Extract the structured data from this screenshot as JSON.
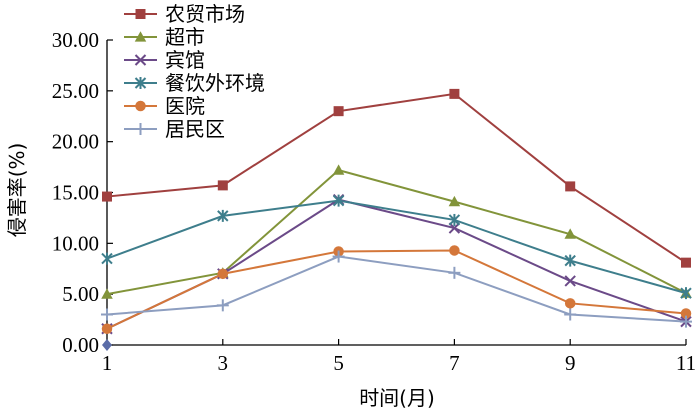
{
  "chart_data": {
    "type": "line",
    "xlabel": "时间(月)",
    "ylabel": "侵害率(%)",
    "x": [
      1,
      3,
      5,
      7,
      9,
      11
    ],
    "x_ticks": [
      "1",
      "3",
      "5",
      "7",
      "9",
      "11"
    ],
    "y_ticks": [
      "0.00",
      "5.00",
      "10.00",
      "15.00",
      "20.00",
      "25.00",
      "30.00"
    ],
    "xlim": [
      1,
      11
    ],
    "ylim": [
      0,
      30
    ],
    "grid": false,
    "legend_position": "top-left",
    "series": [
      {
        "name": "农贸市场",
        "marker": "square",
        "color": "#a0403f",
        "values": [
          14.6,
          15.7,
          23.0,
          24.7,
          15.6,
          8.1
        ]
      },
      {
        "name": "超市",
        "marker": "triangle",
        "color": "#82943a",
        "values": [
          5.0,
          7.1,
          17.2,
          14.1,
          10.9,
          5.1
        ]
      },
      {
        "name": "宾馆",
        "marker": "x",
        "color": "#6b4a88",
        "values": [
          1.6,
          7.0,
          14.3,
          11.5,
          6.3,
          2.3
        ]
      },
      {
        "name": "餐饮外环境",
        "marker": "star",
        "color": "#3e7e8c",
        "values": [
          8.5,
          12.7,
          14.2,
          12.3,
          8.3,
          5.1
        ]
      },
      {
        "name": "医院",
        "marker": "circle",
        "color": "#d4773a",
        "values": [
          1.6,
          7.0,
          9.2,
          9.3,
          4.1,
          3.1
        ]
      },
      {
        "name": "居民区",
        "marker": "plus",
        "color": "#8d9ec0",
        "values": [
          3.0,
          3.9,
          8.7,
          7.1,
          3.0,
          2.3
        ]
      }
    ],
    "origin_marker_color": "#5a6ca8"
  }
}
